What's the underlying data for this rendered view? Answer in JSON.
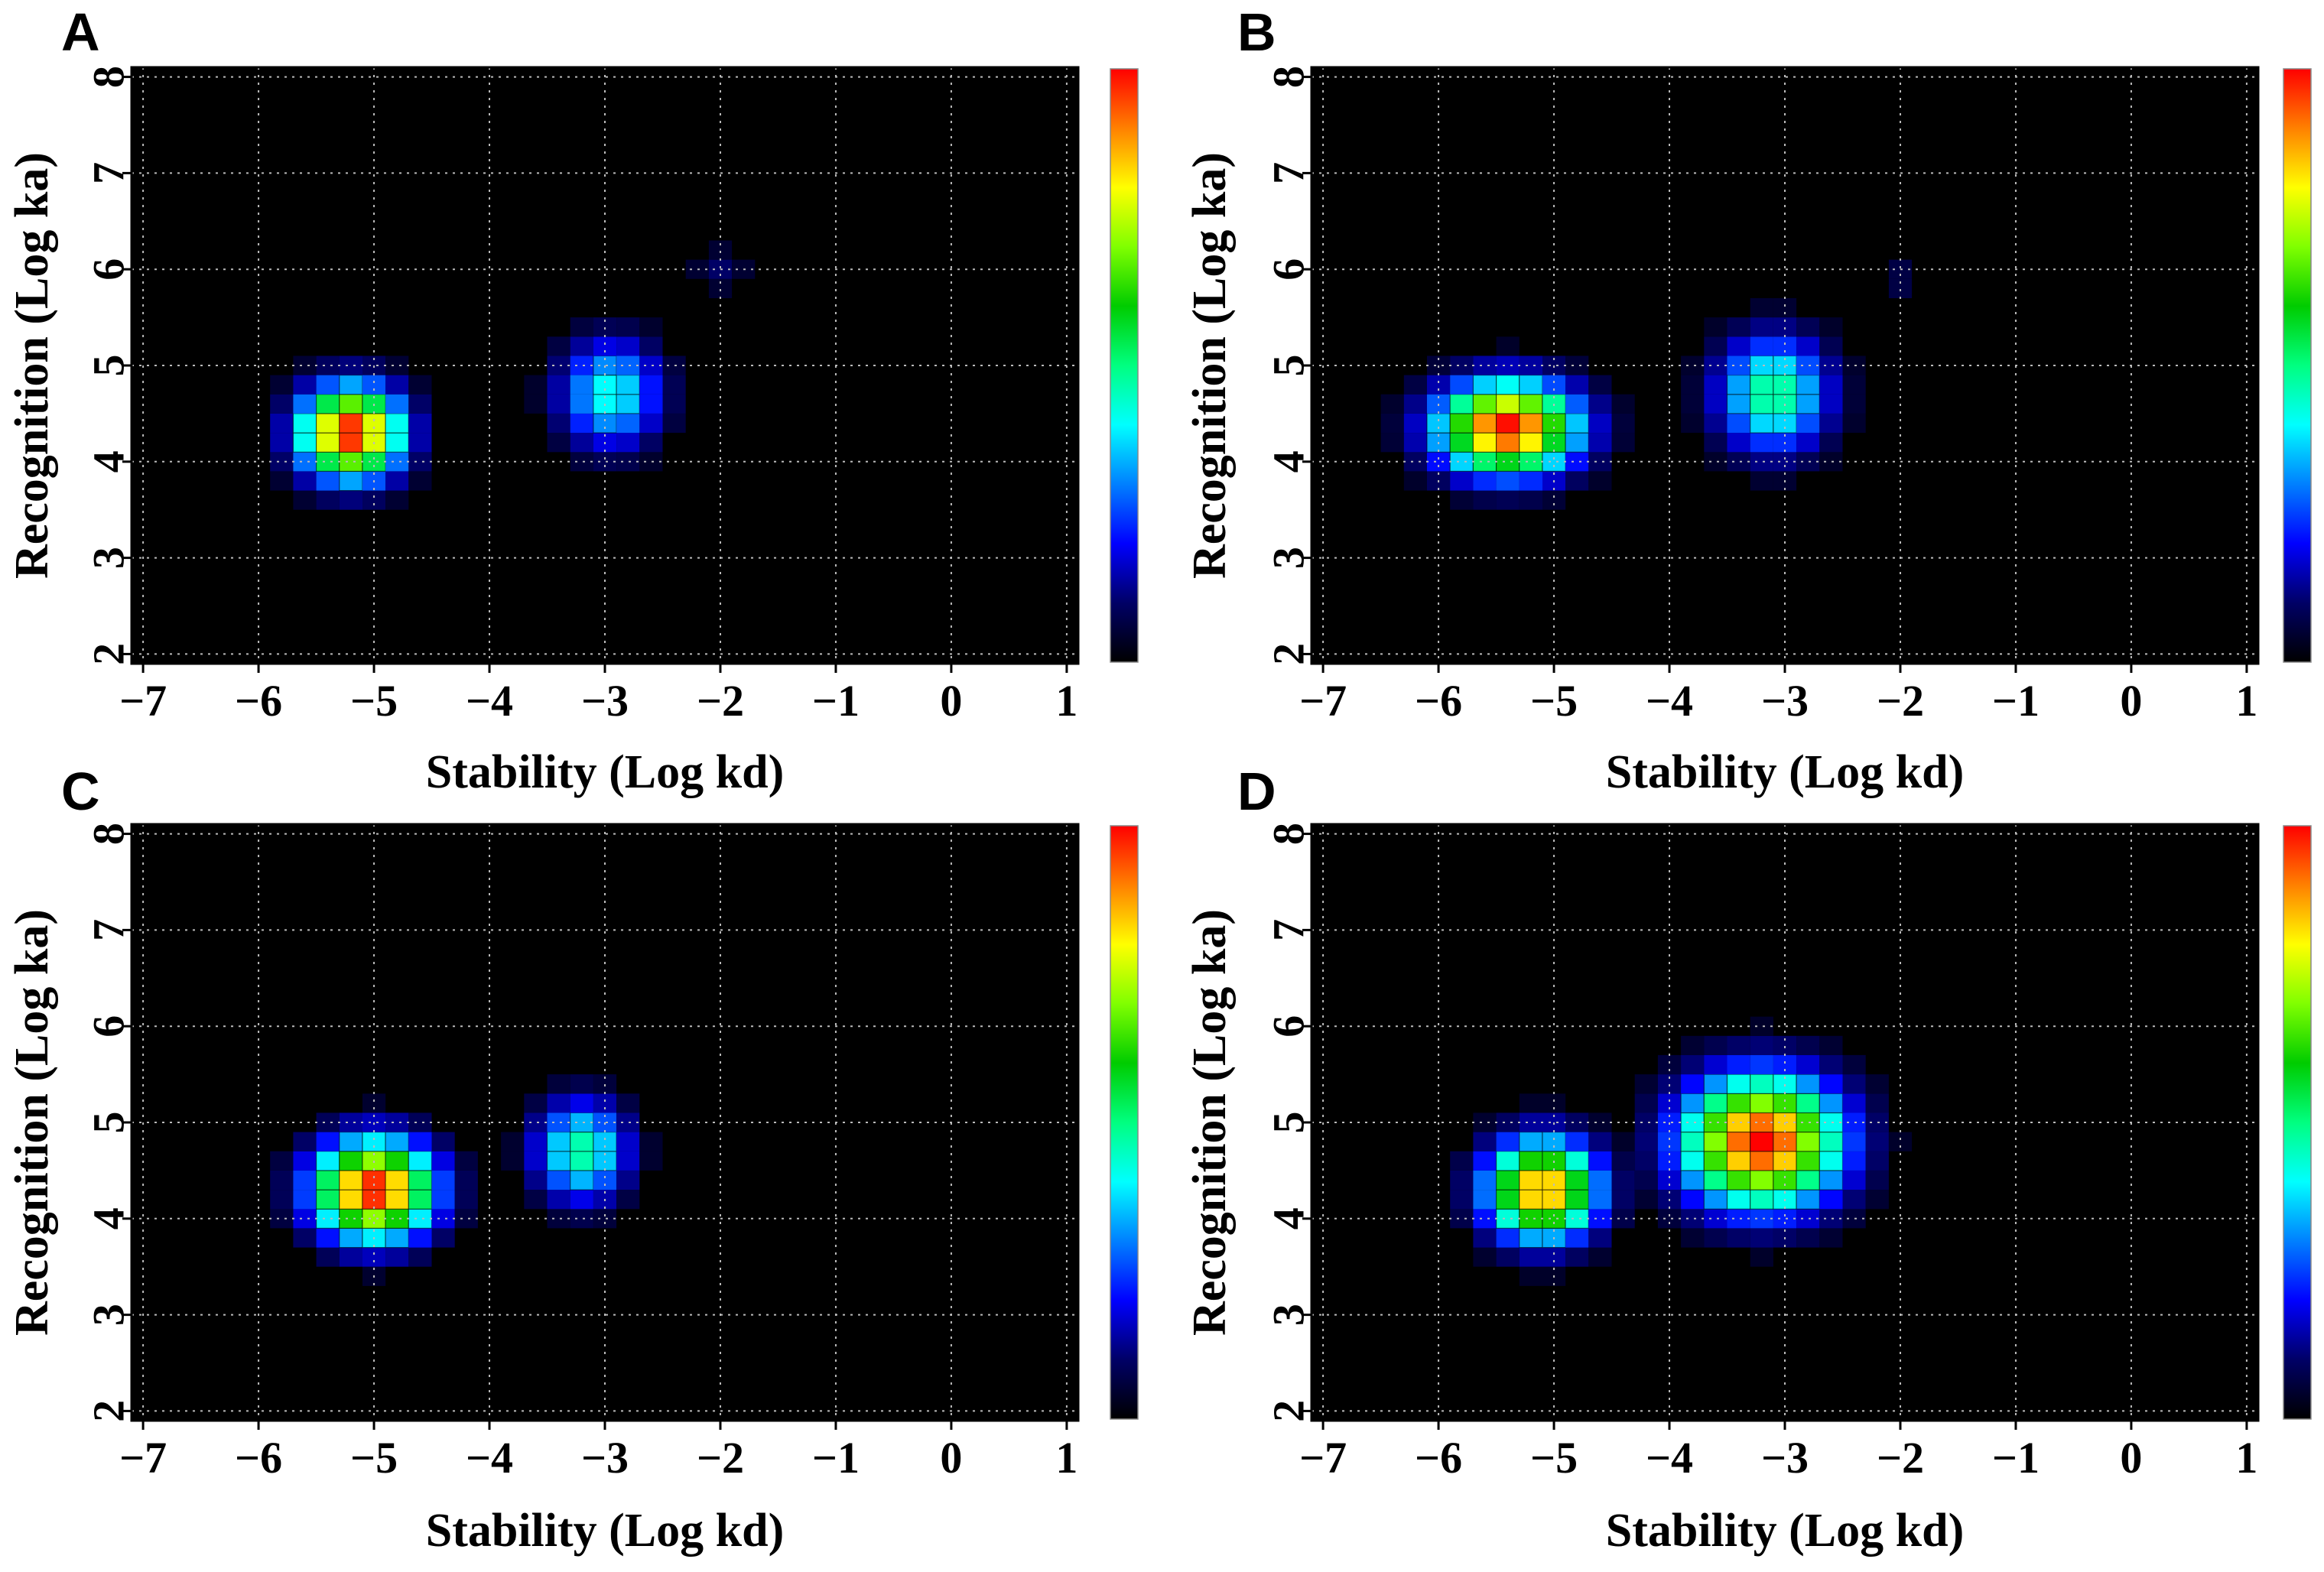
{
  "colormap": [
    "#000000",
    "#000066",
    "#0000ff",
    "#0080ff",
    "#00ffff",
    "#00ff80",
    "#00cc00",
    "#80ff00",
    "#ffff00",
    "#ff8000",
    "#ff0000"
  ],
  "chart_data": [
    {
      "type": "heatmap",
      "panel_label": "A",
      "title": "",
      "xlabel": "Stability (Log kd)",
      "ylabel": "Recognition (Log ka)",
      "xlim": [
        -7.1,
        1.1
      ],
      "ylim": [
        1.9,
        8.1
      ],
      "xticks": [
        -7,
        -6,
        -5,
        -4,
        -3,
        -2,
        -1,
        0,
        1
      ],
      "xtick_labels": [
        "−7",
        "−6",
        "−5",
        "−4",
        "−3",
        "−2",
        "−1",
        "0",
        "1"
      ],
      "yticks": [
        2,
        3,
        4,
        5,
        6,
        7,
        8
      ],
      "ytick_labels": [
        "2",
        "3",
        "4",
        "5",
        "6",
        "7",
        "8"
      ],
      "grid": true,
      "background": "#000000",
      "colorbar": true,
      "bin_size": 0.2,
      "clusters": [
        {
          "x": -5.2,
          "y": 4.3,
          "peak": 1.0,
          "sx": 0.55,
          "sy": 0.6
        },
        {
          "x": -2.95,
          "y": 4.7,
          "peak": 0.42,
          "sx": 0.55,
          "sy": 0.7
        },
        {
          "x": -2.0,
          "y": 6.0,
          "peak": 0.1,
          "sx": 0.3,
          "sy": 0.3
        }
      ]
    },
    {
      "type": "heatmap",
      "panel_label": "B",
      "title": "",
      "xlabel": "Stability (Log kd)",
      "ylabel": "Recognition (Log ka)",
      "xlim": [
        -7.1,
        1.1
      ],
      "ylim": [
        1.9,
        8.1
      ],
      "xticks": [
        -7,
        -6,
        -5,
        -4,
        -3,
        -2,
        -1,
        0,
        1
      ],
      "xtick_labels": [
        "−7",
        "−6",
        "−5",
        "−4",
        "−3",
        "−2",
        "−1",
        "0",
        "1"
      ],
      "yticks": [
        2,
        3,
        4,
        5,
        6,
        7,
        8
      ],
      "ytick_labels": [
        "2",
        "3",
        "4",
        "5",
        "6",
        "7",
        "8"
      ],
      "grid": true,
      "background": "#000000",
      "colorbar": true,
      "bin_size": 0.2,
      "clusters": [
        {
          "x": -5.4,
          "y": 4.35,
          "peak": 1.0,
          "sx": 0.75,
          "sy": 0.6
        },
        {
          "x": -3.1,
          "y": 4.7,
          "peak": 0.5,
          "sx": 0.6,
          "sy": 0.75
        },
        {
          "x": -2.0,
          "y": 5.9,
          "peak": 0.08,
          "sx": 0.3,
          "sy": 0.3
        }
      ]
    },
    {
      "type": "heatmap",
      "panel_label": "C",
      "title": "",
      "xlabel": "Stability (Log kd)",
      "ylabel": "Recognition (Log ka)",
      "xlim": [
        -7.1,
        1.1
      ],
      "ylim": [
        1.9,
        8.1
      ],
      "xticks": [
        -7,
        -6,
        -5,
        -4,
        -3,
        -2,
        -1,
        0,
        1
      ],
      "xtick_labels": [
        "−7",
        "−6",
        "−5",
        "−4",
        "−3",
        "−2",
        "−1",
        "0",
        "1"
      ],
      "yticks": [
        2,
        3,
        4,
        5,
        6,
        7,
        8
      ],
      "ytick_labels": [
        "2",
        "3",
        "4",
        "5",
        "6",
        "7",
        "8"
      ],
      "grid": true,
      "background": "#000000",
      "colorbar": true,
      "bin_size": 0.2,
      "clusters": [
        {
          "x": -5.0,
          "y": 4.3,
          "peak": 1.0,
          "sx": 0.65,
          "sy": 0.65
        },
        {
          "x": -3.2,
          "y": 4.7,
          "peak": 0.48,
          "sx": 0.5,
          "sy": 0.65
        }
      ]
    },
    {
      "type": "heatmap",
      "panel_label": "D",
      "title": "",
      "xlabel": "Stability (Log kd)",
      "ylabel": "Recognition (Log ka)",
      "xlim": [
        -7.1,
        1.1
      ],
      "ylim": [
        1.9,
        8.1
      ],
      "xticks": [
        -7,
        -6,
        -5,
        -4,
        -3,
        -2,
        -1,
        0,
        1
      ],
      "xtick_labels": [
        "−7",
        "−6",
        "−5",
        "−4",
        "−3",
        "−2",
        "−1",
        "0",
        "1"
      ],
      "yticks": [
        2,
        3,
        4,
        5,
        6,
        7,
        8
      ],
      "ytick_labels": [
        "2",
        "3",
        "4",
        "5",
        "6",
        "7",
        "8"
      ],
      "grid": true,
      "background": "#000000",
      "colorbar": true,
      "bin_size": 0.2,
      "clusters": [
        {
          "x": -5.1,
          "y": 4.3,
          "peak": 0.9,
          "sx": 0.6,
          "sy": 0.65
        },
        {
          "x": -3.2,
          "y": 4.8,
          "peak": 1.0,
          "sx": 0.85,
          "sy": 0.85
        }
      ]
    }
  ]
}
